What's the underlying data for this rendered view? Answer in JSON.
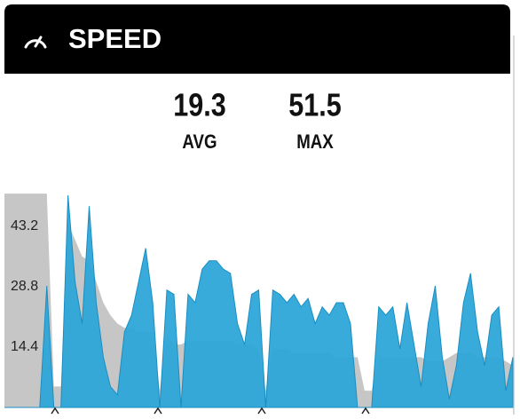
{
  "chart_data": {
    "type": "area",
    "title": "SPEED",
    "stats": [
      {
        "value": "19.3",
        "label": "AVG"
      },
      {
        "value": "51.5",
        "label": "MAX"
      }
    ],
    "ylim": [
      0,
      57.6
    ],
    "yticks": [
      14.4,
      28.8,
      43.2
    ],
    "grid": false,
    "series": [
      {
        "color": "#c6c6c6",
        "values": [
          51,
          51,
          51,
          51,
          51,
          51,
          51,
          5,
          5,
          44,
          40,
          36,
          35,
          30,
          25,
          22,
          20,
          19,
          19,
          18,
          18,
          18,
          4,
          17,
          15,
          15,
          16,
          16,
          16,
          16,
          16,
          16,
          16,
          15,
          15,
          15,
          14,
          4,
          14,
          14,
          14,
          13,
          13,
          13,
          13,
          13,
          13,
          12,
          12,
          12,
          12,
          4,
          4,
          12,
          12,
          12,
          12,
          12,
          12,
          12,
          11,
          11,
          11,
          12,
          13,
          13,
          13,
          12,
          12,
          12,
          12,
          11,
          10
        ]
      },
      {
        "color": "#2ea6d9",
        "values": [
          0,
          0,
          0,
          0,
          0,
          0,
          29,
          0,
          0,
          50.6,
          30,
          20,
          48,
          25,
          12,
          5,
          3,
          18,
          22,
          30,
          38,
          25,
          0,
          28,
          27,
          0,
          27,
          25,
          33,
          35,
          35,
          33,
          32,
          20,
          15,
          27,
          28,
          0,
          28,
          27,
          25,
          27,
          24,
          26,
          20,
          24,
          22,
          25,
          25,
          20,
          0,
          0,
          0,
          24,
          22,
          24,
          14,
          25,
          15,
          5,
          20,
          29,
          12,
          2,
          10,
          25,
          32,
          18,
          10,
          22,
          24,
          4,
          12
        ]
      }
    ]
  }
}
